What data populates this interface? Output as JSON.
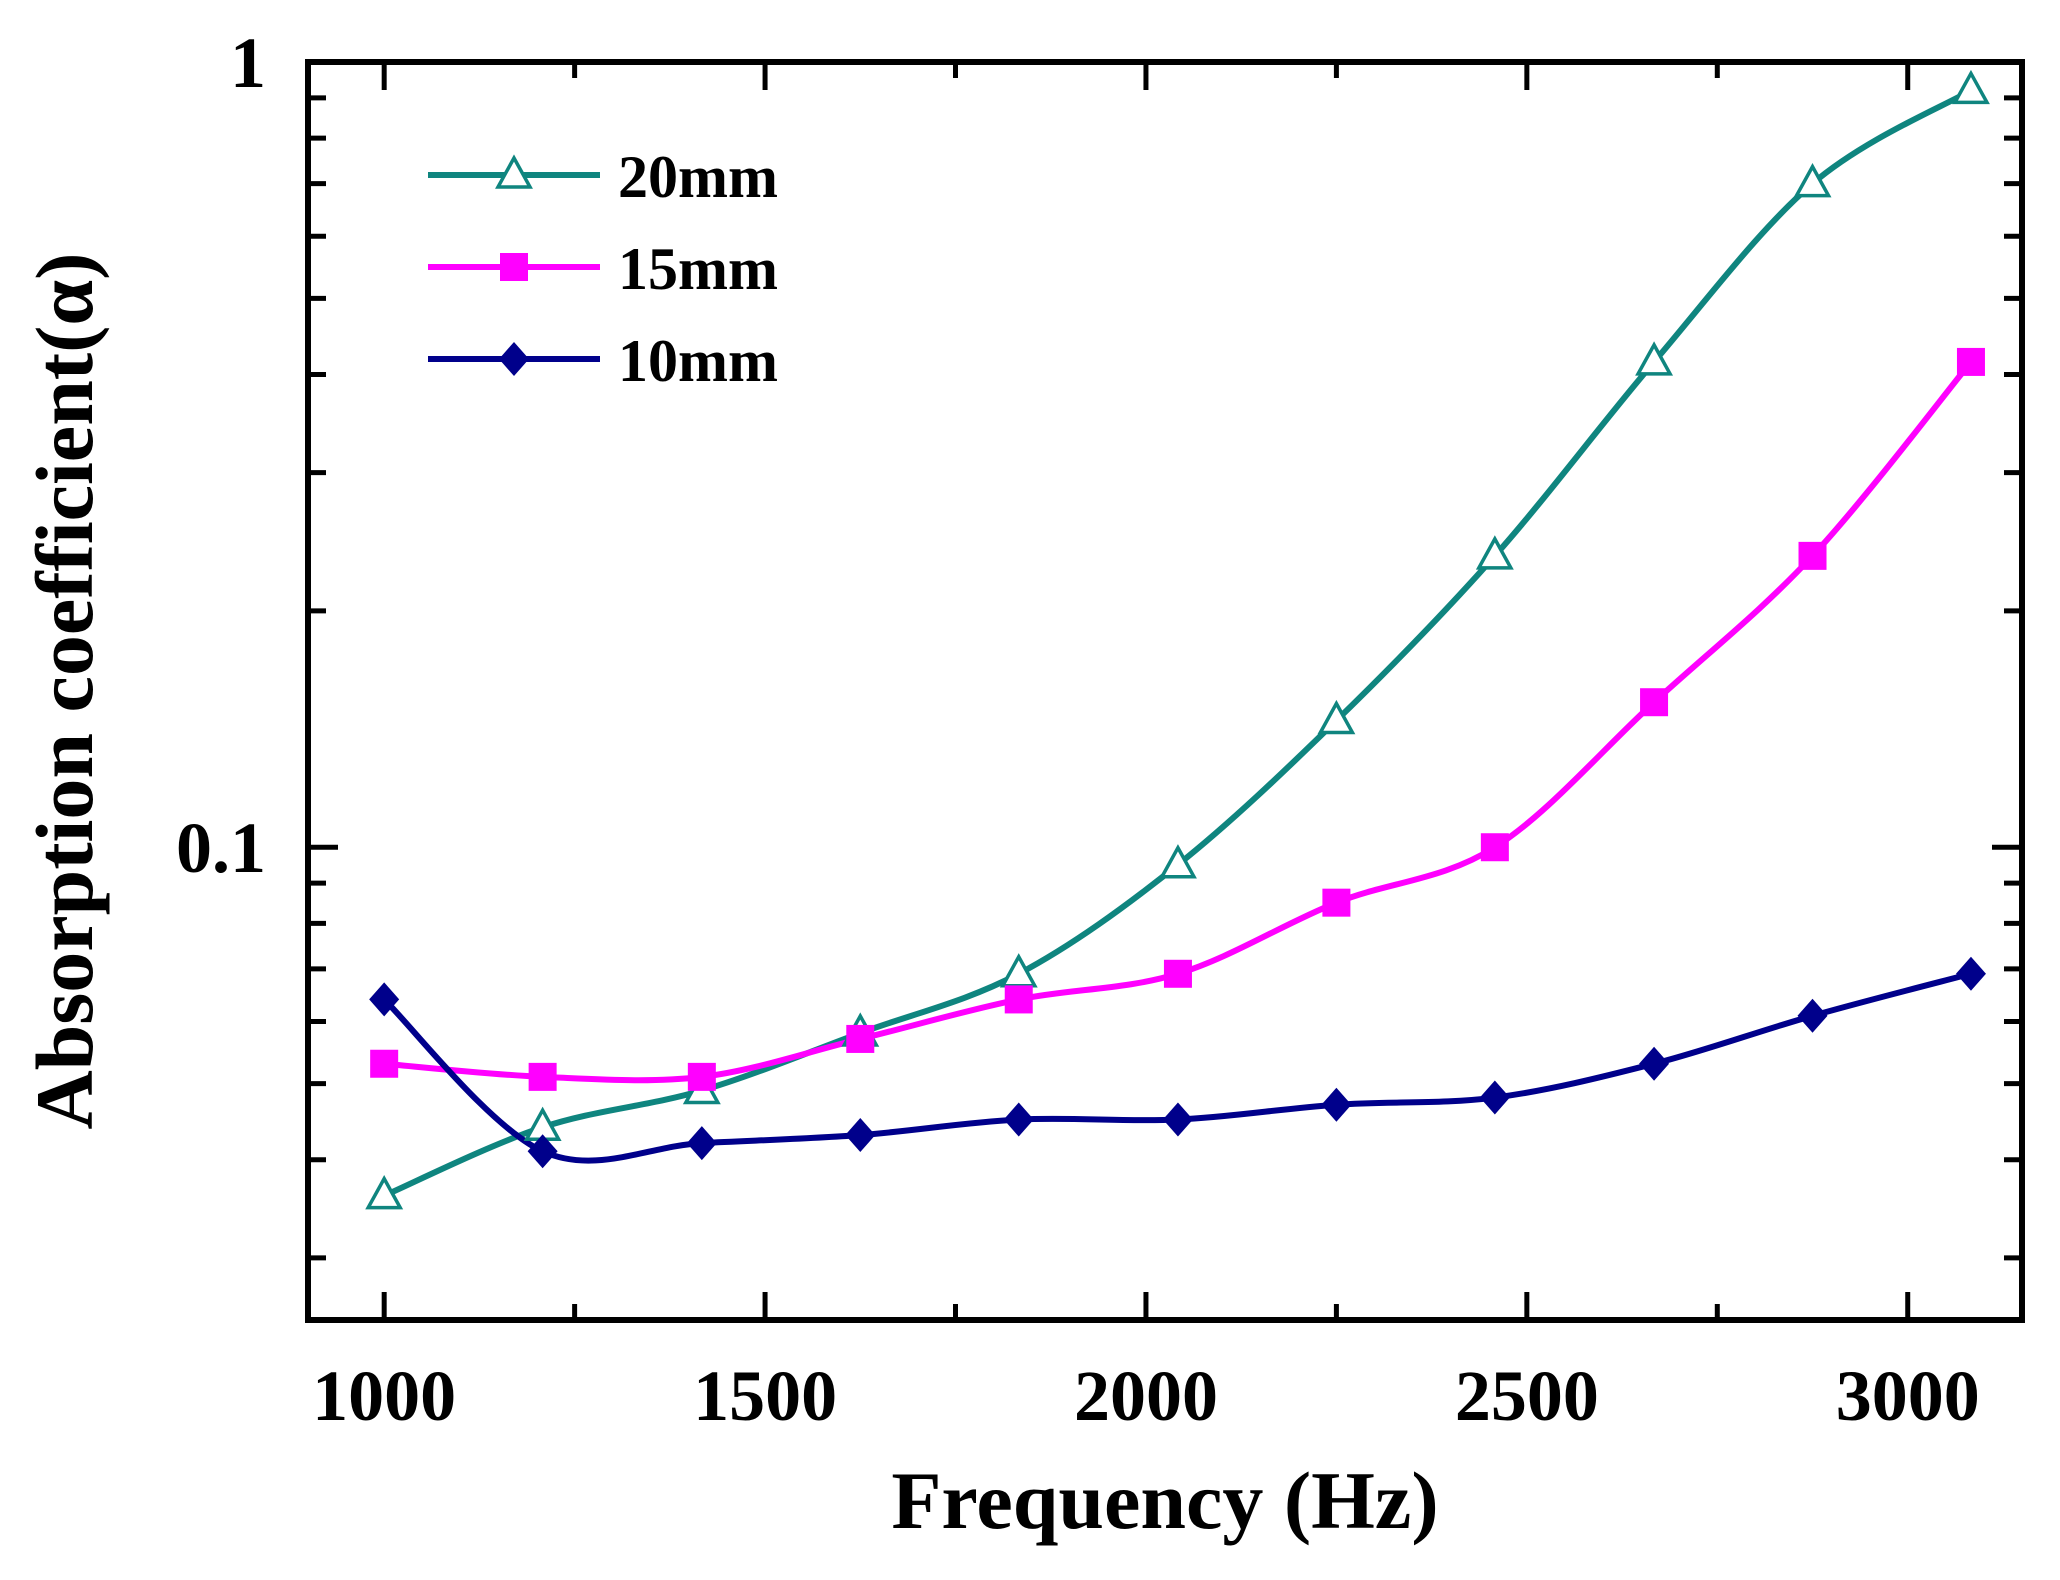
{
  "chart_data": {
    "type": "line",
    "title": "",
    "xlabel": "Frequency (Hz)",
    "ylabel": "Absorption coefficient(α)",
    "xlim": [
      900,
      3150
    ],
    "ylim": [
      0.025,
      1
    ],
    "yscale": "log",
    "x_ticks": [
      1000,
      1500,
      2000,
      2500,
      3000
    ],
    "x_tick_labels": [
      "1000",
      "1500",
      "2000",
      "2500",
      "3000"
    ],
    "y_tick_labels": [
      {
        "value": 1,
        "label": "1"
      },
      {
        "value": 0.1,
        "label": "0.1"
      }
    ],
    "legend_position": "top-left",
    "x": [
      1000,
      1208,
      1417,
      1625,
      1833,
      2042,
      2250,
      2458,
      2667,
      2875,
      3083
    ],
    "series": [
      {
        "name": "20mm",
        "color": "#0F857F",
        "marker": "triangle-open",
        "values": [
          0.036,
          0.044,
          0.049,
          0.058,
          0.069,
          0.095,
          0.145,
          0.235,
          0.415,
          0.7,
          0.92
        ]
      },
      {
        "name": "15mm",
        "color": "#FF00FF",
        "marker": "square",
        "values": [
          0.053,
          0.051,
          0.051,
          0.057,
          0.064,
          0.069,
          0.085,
          0.1,
          0.153,
          0.235,
          0.415
        ]
      },
      {
        "name": "10mm",
        "color": "#00008B",
        "marker": "diamond",
        "values": [
          0.064,
          0.041,
          0.042,
          0.043,
          0.045,
          0.045,
          0.047,
          0.048,
          0.053,
          0.061,
          0.069
        ]
      }
    ]
  }
}
